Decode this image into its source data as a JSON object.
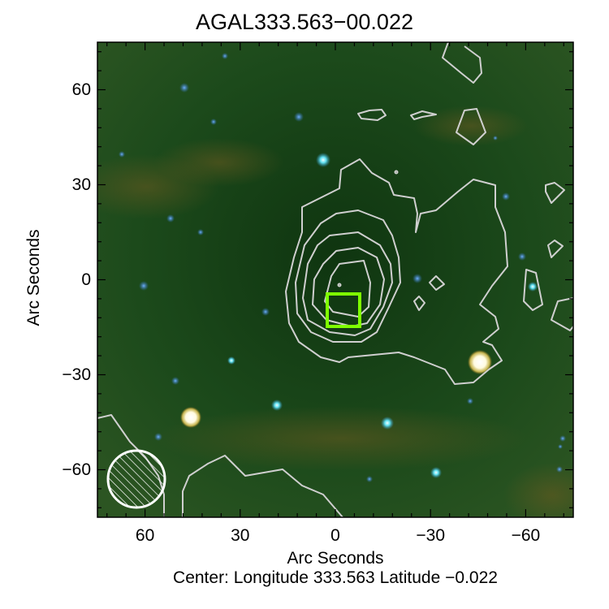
{
  "title": "AGAL333.563−00.022",
  "footer": "Center:  Longitude 333.563 Latitude −0.022",
  "chart_data": {
    "type": "heatmap",
    "title": "AGAL333.563−00.022",
    "xlabel": "Arc Seconds",
    "ylabel": "Arc Seconds",
    "xlim": [
      75,
      -75
    ],
    "ylim": [
      -75,
      75
    ],
    "x_ticks": [
      "60",
      "30",
      "0",
      "−30",
      "−60"
    ],
    "x_tick_values": [
      60,
      30,
      0,
      -30,
      -60
    ],
    "y_ticks": [
      "60",
      "30",
      "0",
      "−30",
      "−60"
    ],
    "y_tick_values": [
      60,
      30,
      0,
      -30,
      -60
    ],
    "grid": false,
    "background": "three-colour infrared image, dark green with cyan/white point sources",
    "contour_color": "#cccccc",
    "marker": {
      "shape": "square",
      "color": "#7fff00",
      "center": [
        -3.6,
        -8.7
      ],
      "size": 10.5
    },
    "beam": {
      "shape": "hatched circle",
      "color": "#ffffff",
      "center": [
        62,
        -62
      ]
    }
  }
}
